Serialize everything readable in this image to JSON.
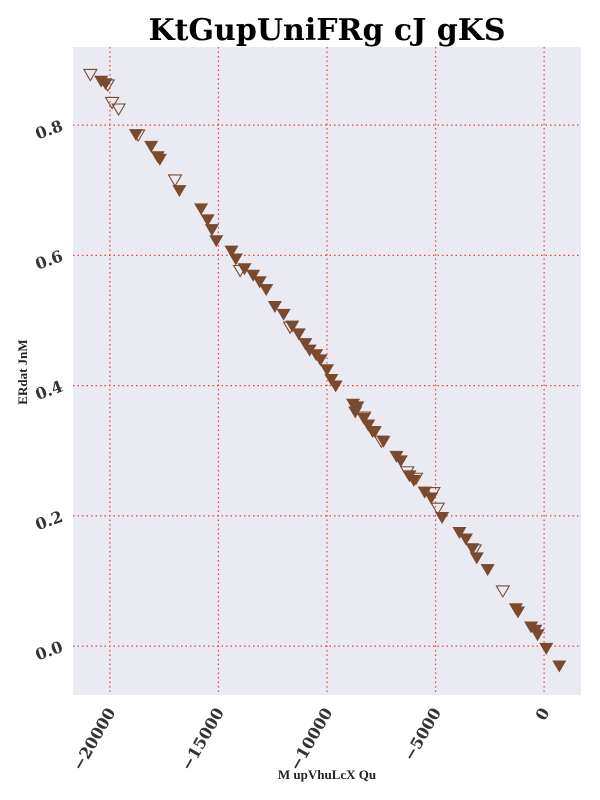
{
  "chart_data": {
    "type": "scatter",
    "title": "KtGupUniFRg cJ gKS",
    "xlabel": "M upVhuLcX Qu",
    "ylabel": "ERdat JnM",
    "xlim": [
      -21700,
      1700
    ],
    "ylim": [
      -0.075,
      0.92
    ],
    "xticks": [
      -20000,
      -15000,
      -10000,
      -5000,
      0
    ],
    "xtick_labels": [
      "−20000",
      "−15000",
      "−10000",
      "−5000",
      "0"
    ],
    "yticks": [
      0.0,
      0.2,
      0.4,
      0.6,
      0.8
    ],
    "ytick_labels": [
      "0.0",
      "0.2",
      "0.4",
      "0.6",
      "0.8"
    ],
    "grid": true,
    "grid_color": "#e8453c",
    "background_color": "#eaeaf2",
    "marker_color": "#7a4a2e",
    "series": [
      {
        "marker": "filled-down-triangle",
        "x": [
          -20400,
          -20200,
          -18800,
          -18100,
          -17800,
          -17700,
          -16800,
          -15800,
          -15500,
          -15300,
          -15100,
          -14400,
          -14200,
          -13800,
          -13400,
          -13100,
          -12800,
          -12400,
          -12000,
          -11600,
          -11300,
          -11000,
          -10800,
          -10500,
          -10300,
          -10000,
          -9800,
          -9600,
          -8800,
          -8700,
          -8600,
          -8300,
          -8100,
          -7900,
          -7800,
          -7400,
          -6800,
          -6600,
          -6200,
          -6000,
          -5500,
          -5200,
          -4700,
          -3900,
          -3600,
          -3300,
          -3100,
          -2600,
          -1300,
          -1200,
          -600,
          -400,
          -300,
          100,
          700
        ],
        "y": [
          0.868,
          0.864,
          0.786,
          0.768,
          0.752,
          0.748,
          0.7,
          0.672,
          0.655,
          0.64,
          0.623,
          0.607,
          0.595,
          0.58,
          0.57,
          0.56,
          0.548,
          0.522,
          0.51,
          0.492,
          0.48,
          0.465,
          0.455,
          0.448,
          0.44,
          0.425,
          0.41,
          0.4,
          0.372,
          0.36,
          0.368,
          0.35,
          0.34,
          0.33,
          0.33,
          0.315,
          0.292,
          0.285,
          0.262,
          0.255,
          0.237,
          0.228,
          0.198,
          0.175,
          0.165,
          0.15,
          0.136,
          0.118,
          0.058,
          0.053,
          0.03,
          0.025,
          0.018,
          -0.003,
          -0.03
        ]
      },
      {
        "marker": "hollow-down-triangle",
        "x": [
          -20900,
          -20100,
          -19900,
          -19600,
          -18700,
          -17000,
          -14000,
          -11700,
          -8300,
          -7500,
          -6300,
          -5900,
          -5100,
          -4900,
          -3200,
          -1900
        ],
        "y": [
          0.878,
          0.862,
          0.835,
          0.825,
          0.785,
          0.716,
          0.577,
          0.49,
          0.352,
          0.315,
          0.268,
          0.258,
          0.236,
          0.212,
          0.148,
          0.085
        ]
      }
    ]
  }
}
